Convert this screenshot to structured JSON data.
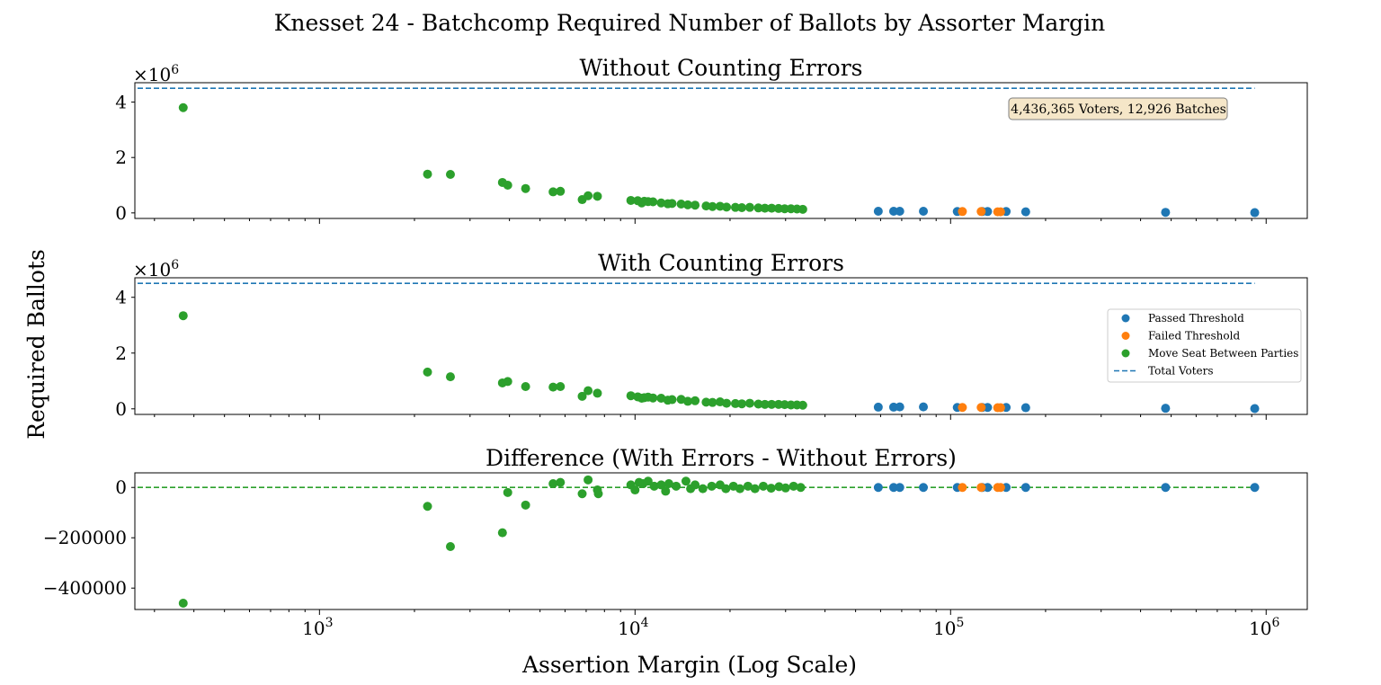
{
  "figure": {
    "title": "Knesset 24 - Batchcomp Required Number of Ballots by Assorter Margin",
    "ylabel": "Required Ballots",
    "xlabel": "Assertion Margin (Log Scale)",
    "x_scale": "log",
    "xlim": [
      260,
      1350000
    ],
    "x_major_ticks": [
      1000,
      10000,
      100000,
      1000000
    ],
    "x_tick_labels": [
      {
        "base": "10",
        "exp": "3"
      },
      {
        "base": "10",
        "exp": "4"
      },
      {
        "base": "10",
        "exp": "5"
      },
      {
        "base": "10",
        "exp": "6"
      }
    ]
  },
  "colors": {
    "passed": "#1f77b4",
    "failed": "#ff7f0e",
    "move_seat": "#2ca02c",
    "total_line": "#1f77b4",
    "zero_line": "#2ca02c",
    "annotation_bg": "#f5e6c8",
    "annotation_border": "#7f7f7f"
  },
  "annotation": "4,436,365 Voters, 12,926 Batches",
  "legend": {
    "placement": "right",
    "entries": [
      {
        "label": "Passed Threshold",
        "kind": "dot",
        "color": "#1f77b4"
      },
      {
        "label": "Failed Threshold",
        "kind": "dot",
        "color": "#ff7f0e"
      },
      {
        "label": "Move Seat Between Parties",
        "kind": "dot",
        "color": "#2ca02c"
      },
      {
        "label": "Total Voters",
        "kind": "dash",
        "color": "#1f77b4"
      }
    ]
  },
  "chart_data": [
    {
      "type": "scatter",
      "title": "Without Counting Errors",
      "ylim": [
        -0.2,
        4.7
      ],
      "y_ticks": [
        "0",
        "2",
        "4"
      ],
      "y_tick_values": [
        0,
        2,
        4
      ],
      "y_multiplier": {
        "base": "×10",
        "exp": "6"
      },
      "reference_line": {
        "name": "Total Voters",
        "y": 4.5,
        "x_end": 920000
      },
      "series": [
        {
          "name": "Passed Threshold",
          "color": "#1f77b4",
          "x": [
            59000,
            66000,
            69000,
            82000,
            105000,
            126000,
            131000,
            150000,
            173000,
            480000,
            920000
          ],
          "y": [
            0.06,
            0.06,
            0.06,
            0.06,
            0.05,
            0.05,
            0.05,
            0.05,
            0.04,
            0.02,
            0.01
          ]
        },
        {
          "name": "Failed Threshold",
          "color": "#ff7f0e",
          "x": [
            109000,
            125000,
            141000,
            144000
          ],
          "y": [
            0.05,
            0.05,
            0.04,
            0.04
          ]
        },
        {
          "name": "Move Seat Between Parties",
          "color": "#2ca02c",
          "x": [
            370,
            2200,
            2600,
            3800,
            3950,
            4500,
            5500,
            5800,
            6800,
            7100,
            7600,
            9700,
            10200,
            10500,
            10700,
            11000,
            11400,
            12100,
            12700,
            13100,
            14000,
            14700,
            15500,
            16800,
            17600,
            18600,
            19500,
            20800,
            21800,
            23100,
            24600,
            25800,
            27100,
            28500,
            29800,
            31200,
            32600,
            34000
          ],
          "y": [
            3.8,
            1.4,
            1.39,
            1.1,
            1.0,
            0.88,
            0.76,
            0.78,
            0.48,
            0.62,
            0.6,
            0.45,
            0.44,
            0.36,
            0.42,
            0.41,
            0.4,
            0.36,
            0.33,
            0.34,
            0.32,
            0.29,
            0.28,
            0.25,
            0.23,
            0.24,
            0.21,
            0.2,
            0.19,
            0.2,
            0.18,
            0.17,
            0.17,
            0.16,
            0.15,
            0.15,
            0.14,
            0.13
          ]
        }
      ]
    },
    {
      "type": "scatter",
      "title": "With Counting Errors",
      "ylim": [
        -0.2,
        4.7
      ],
      "y_ticks": [
        "0",
        "2",
        "4"
      ],
      "y_tick_values": [
        0,
        2,
        4
      ],
      "y_multiplier": {
        "base": "×10",
        "exp": "6"
      },
      "reference_line": {
        "name": "Total Voters",
        "y": 4.5,
        "x_end": 920000
      },
      "series": [
        {
          "name": "Passed Threshold",
          "color": "#1f77b4",
          "x": [
            59000,
            66000,
            69000,
            82000,
            105000,
            126000,
            131000,
            150000,
            173000,
            480000,
            920000
          ],
          "y": [
            0.06,
            0.06,
            0.07,
            0.07,
            0.05,
            0.05,
            0.05,
            0.05,
            0.04,
            0.02,
            0.01
          ]
        },
        {
          "name": "Failed Threshold",
          "color": "#ff7f0e",
          "x": [
            109000,
            125000,
            141000,
            144000
          ],
          "y": [
            0.05,
            0.05,
            0.04,
            0.04
          ]
        },
        {
          "name": "Move Seat Between Parties",
          "color": "#2ca02c",
          "x": [
            370,
            2200,
            2600,
            3800,
            3950,
            4500,
            5500,
            5800,
            6800,
            7100,
            7600,
            9700,
            10200,
            10500,
            10700,
            11000,
            11400,
            12100,
            12700,
            13100,
            14000,
            14700,
            15500,
            16800,
            17600,
            18600,
            19500,
            20800,
            21800,
            23100,
            24600,
            25800,
            27100,
            28500,
            29800,
            31200,
            32600,
            34000
          ],
          "y": [
            3.34,
            1.32,
            1.15,
            0.93,
            0.98,
            0.8,
            0.78,
            0.8,
            0.45,
            0.65,
            0.56,
            0.47,
            0.43,
            0.38,
            0.4,
            0.42,
            0.39,
            0.38,
            0.31,
            0.33,
            0.34,
            0.27,
            0.29,
            0.24,
            0.23,
            0.25,
            0.2,
            0.19,
            0.18,
            0.2,
            0.17,
            0.16,
            0.16,
            0.16,
            0.15,
            0.14,
            0.14,
            0.13
          ]
        }
      ]
    },
    {
      "type": "scatter",
      "title": "Difference (With Errors - Without Errors)",
      "ylim": [
        -485000,
        58000
      ],
      "y_ticks": [
        "0",
        "−200000",
        "−400000"
      ],
      "y_tick_values": [
        0,
        -200000,
        -400000
      ],
      "reference_line": {
        "name": "zero",
        "y": 0,
        "x_end": 920000
      },
      "series": [
        {
          "name": "Passed Threshold",
          "color": "#1f77b4",
          "x": [
            59000,
            66000,
            69000,
            82000,
            105000,
            126000,
            131000,
            150000,
            173000,
            480000,
            920000
          ],
          "y": [
            0,
            0,
            0,
            0,
            0,
            0,
            0,
            0,
            0,
            0,
            0
          ]
        },
        {
          "name": "Failed Threshold",
          "color": "#ff7f0e",
          "x": [
            109000,
            125000,
            141000,
            144000
          ],
          "y": [
            0,
            0,
            0,
            0
          ]
        },
        {
          "name": "Move Seat Between Parties",
          "color": "#2ca02c",
          "x": [
            370,
            2200,
            2600,
            3800,
            3950,
            4500,
            5500,
            5800,
            6800,
            7100,
            7600,
            7650,
            9700,
            10000,
            10300,
            10600,
            11000,
            11500,
            12100,
            12500,
            12800,
            13500,
            14500,
            15000,
            15500,
            16400,
            17500,
            18600,
            19400,
            20500,
            21500,
            22800,
            24000,
            25500,
            27000,
            28600,
            30000,
            31800,
            33500
          ],
          "y": [
            -460000,
            -75000,
            -235000,
            -180000,
            -20000,
            -70000,
            15000,
            20000,
            -25000,
            30000,
            -10000,
            -25000,
            10000,
            -10000,
            20000,
            15000,
            25000,
            5000,
            10000,
            -15000,
            15000,
            5000,
            25000,
            -5000,
            10000,
            -5000,
            5000,
            10000,
            -5000,
            5000,
            -5000,
            5000,
            -5000,
            5000,
            -3000,
            3000,
            -2000,
            5000,
            0
          ]
        }
      ]
    }
  ]
}
